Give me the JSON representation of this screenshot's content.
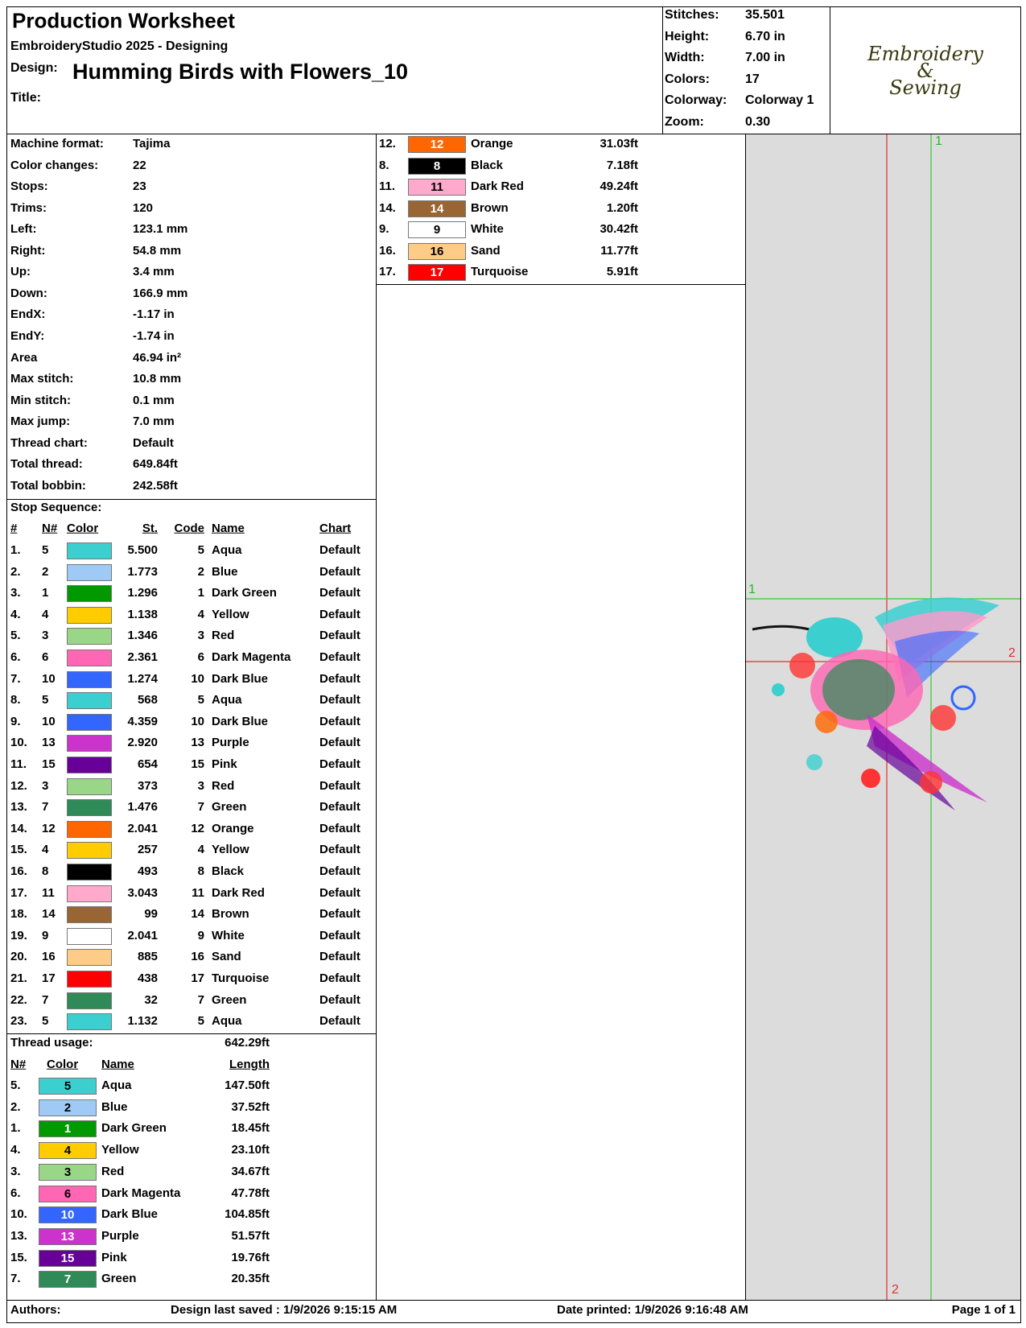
{
  "header": {
    "title": "Production Worksheet",
    "software": "EmbroideryStudio 2025 - Designing",
    "design_label": "Design:",
    "design": "Humming Birds with Flowers_10",
    "title_label": "Title:"
  },
  "stats": [
    [
      "Stitches:",
      "35.501"
    ],
    [
      "Height:",
      "6.70 in"
    ],
    [
      "Width:",
      "7.00 in"
    ],
    [
      "Colors:",
      "17"
    ],
    [
      "Colorway:",
      "Colorway 1"
    ],
    [
      "Zoom:",
      "0.30"
    ]
  ],
  "logo": [
    "Embroidery",
    "&",
    "Sewing"
  ],
  "machine_info": [
    [
      "Machine format:",
      "Tajima"
    ],
    [
      "Color changes:",
      "22"
    ],
    [
      "Stops:",
      "23"
    ],
    [
      "Trims:",
      "120"
    ],
    [
      "Left:",
      "123.1 mm"
    ],
    [
      "Right:",
      "54.8 mm"
    ],
    [
      "Up:",
      "3.4 mm"
    ],
    [
      "Down:",
      "166.9 mm"
    ],
    [
      "EndX:",
      "-1.17 in"
    ],
    [
      "EndY:",
      "-1.74 in"
    ],
    [
      "Area",
      "46.94 in²"
    ],
    [
      "Max stitch:",
      "10.8 mm"
    ],
    [
      "Min stitch:",
      "0.1 mm"
    ],
    [
      "Max jump:",
      "7.0 mm"
    ],
    [
      "Thread chart:",
      "Default"
    ],
    [
      "Total thread:",
      "649.84ft"
    ],
    [
      "Total bobbin:",
      "242.58ft"
    ]
  ],
  "stop_sequence": {
    "title": "Stop Sequence:",
    "columns": [
      "#",
      "N#",
      "Color",
      "St.",
      "Code",
      "Name",
      "Chart"
    ],
    "rows": [
      [
        "1.",
        "5",
        "#3ccfd0",
        "5.500",
        "5",
        "Aqua",
        "Default"
      ],
      [
        "2.",
        "2",
        "#9fcaf5",
        "1.773",
        "2",
        "Blue",
        "Default"
      ],
      [
        "3.",
        "1",
        "#009900",
        "1.296",
        "1",
        "Dark Green",
        "Default"
      ],
      [
        "4.",
        "4",
        "#ffcc00",
        "1.138",
        "4",
        "Yellow",
        "Default"
      ],
      [
        "5.",
        "3",
        "#99d688",
        "1.346",
        "3",
        "Red",
        "Default"
      ],
      [
        "6.",
        "6",
        "#ff66b3",
        "2.361",
        "6",
        "Dark Magenta",
        "Default"
      ],
      [
        "7.",
        "10",
        "#3366ff",
        "1.274",
        "10",
        "Dark Blue",
        "Default"
      ],
      [
        "8.",
        "5",
        "#3ccfd0",
        "568",
        "5",
        "Aqua",
        "Default"
      ],
      [
        "9.",
        "10",
        "#3366ff",
        "4.359",
        "10",
        "Dark Blue",
        "Default"
      ],
      [
        "10.",
        "13",
        "#cc33cc",
        "2.920",
        "13",
        "Purple",
        "Default"
      ],
      [
        "11.",
        "15",
        "#660099",
        "654",
        "15",
        "Pink",
        "Default"
      ],
      [
        "12.",
        "3",
        "#99d688",
        "373",
        "3",
        "Red",
        "Default"
      ],
      [
        "13.",
        "7",
        "#2e8b57",
        "1.476",
        "7",
        "Green",
        "Default"
      ],
      [
        "14.",
        "12",
        "#ff6600",
        "2.041",
        "12",
        "Orange",
        "Default"
      ],
      [
        "15.",
        "4",
        "#ffcc00",
        "257",
        "4",
        "Yellow",
        "Default"
      ],
      [
        "16.",
        "8",
        "#000000",
        "493",
        "8",
        "Black",
        "Default"
      ],
      [
        "17.",
        "11",
        "#ffaacc",
        "3.043",
        "11",
        "Dark Red",
        "Default"
      ],
      [
        "18.",
        "14",
        "#996633",
        "99",
        "14",
        "Brown",
        "Default"
      ],
      [
        "19.",
        "9",
        "#ffffff",
        "2.041",
        "9",
        "White",
        "Default"
      ],
      [
        "20.",
        "16",
        "#ffcc88",
        "885",
        "16",
        "Sand",
        "Default"
      ],
      [
        "21.",
        "17",
        "#ff0000",
        "438",
        "17",
        "Turquoise",
        "Default"
      ],
      [
        "22.",
        "7",
        "#2e8b57",
        "32",
        "7",
        "Green",
        "Default"
      ],
      [
        "23.",
        "5",
        "#3ccfd0",
        "1.132",
        "5",
        "Aqua",
        "Default"
      ]
    ]
  },
  "thread_usage": {
    "title": "Thread usage:",
    "total": "642.29ft",
    "columns": [
      "N#",
      "Color",
      "Name",
      "Length"
    ],
    "rows": [
      [
        "5.",
        "#3ccfd0",
        "5",
        "Aqua",
        "147.50ft"
      ],
      [
        "2.",
        "#9fcaf5",
        "2",
        "Blue",
        "37.52ft"
      ],
      [
        "1.",
        "#009900",
        "1",
        "Dark Green",
        "18.45ft"
      ],
      [
        "4.",
        "#ffcc00",
        "4",
        "Yellow",
        "23.10ft"
      ],
      [
        "3.",
        "#99d688",
        "3",
        "Red",
        "34.67ft"
      ],
      [
        "6.",
        "#ff66b3",
        "6",
        "Dark Magenta",
        "47.78ft"
      ],
      [
        "10.",
        "#3366ff",
        "10",
        "Dark Blue",
        "104.85ft"
      ],
      [
        "13.",
        "#cc33cc",
        "13",
        "Purple",
        "51.57ft"
      ],
      [
        "15.",
        "#660099",
        "15",
        "Pink",
        "19.76ft"
      ],
      [
        "7.",
        "#2e8b57",
        "7",
        "Green",
        "20.35ft"
      ]
    ],
    "more_rows": [
      [
        "12.",
        "#ff6600",
        "12",
        "Orange",
        "31.03ft"
      ],
      [
        "8.",
        "#000000",
        "8",
        "Black",
        "7.18ft"
      ],
      [
        "11.",
        "#ffaacc",
        "11",
        "Dark Red",
        "49.24ft"
      ],
      [
        "14.",
        "#996633",
        "14",
        "Brown",
        "1.20ft"
      ],
      [
        "9.",
        "#ffffff",
        "9",
        "White",
        "30.42ft"
      ],
      [
        "16.",
        "#ffcc88",
        "16",
        "Sand",
        "11.77ft"
      ],
      [
        "17.",
        "#ff0000",
        "17",
        "Turquoise",
        "5.91ft"
      ]
    ]
  },
  "preview": {
    "labels": [
      "1",
      "1",
      "2",
      "2"
    ]
  },
  "footer": {
    "authors": "Authors:",
    "saved": "Design last saved : 1/9/2026 9:15:15 AM",
    "printed": "Date printed: 1/9/2026 9:16:48 AM",
    "page": "Page 1 of 1"
  }
}
